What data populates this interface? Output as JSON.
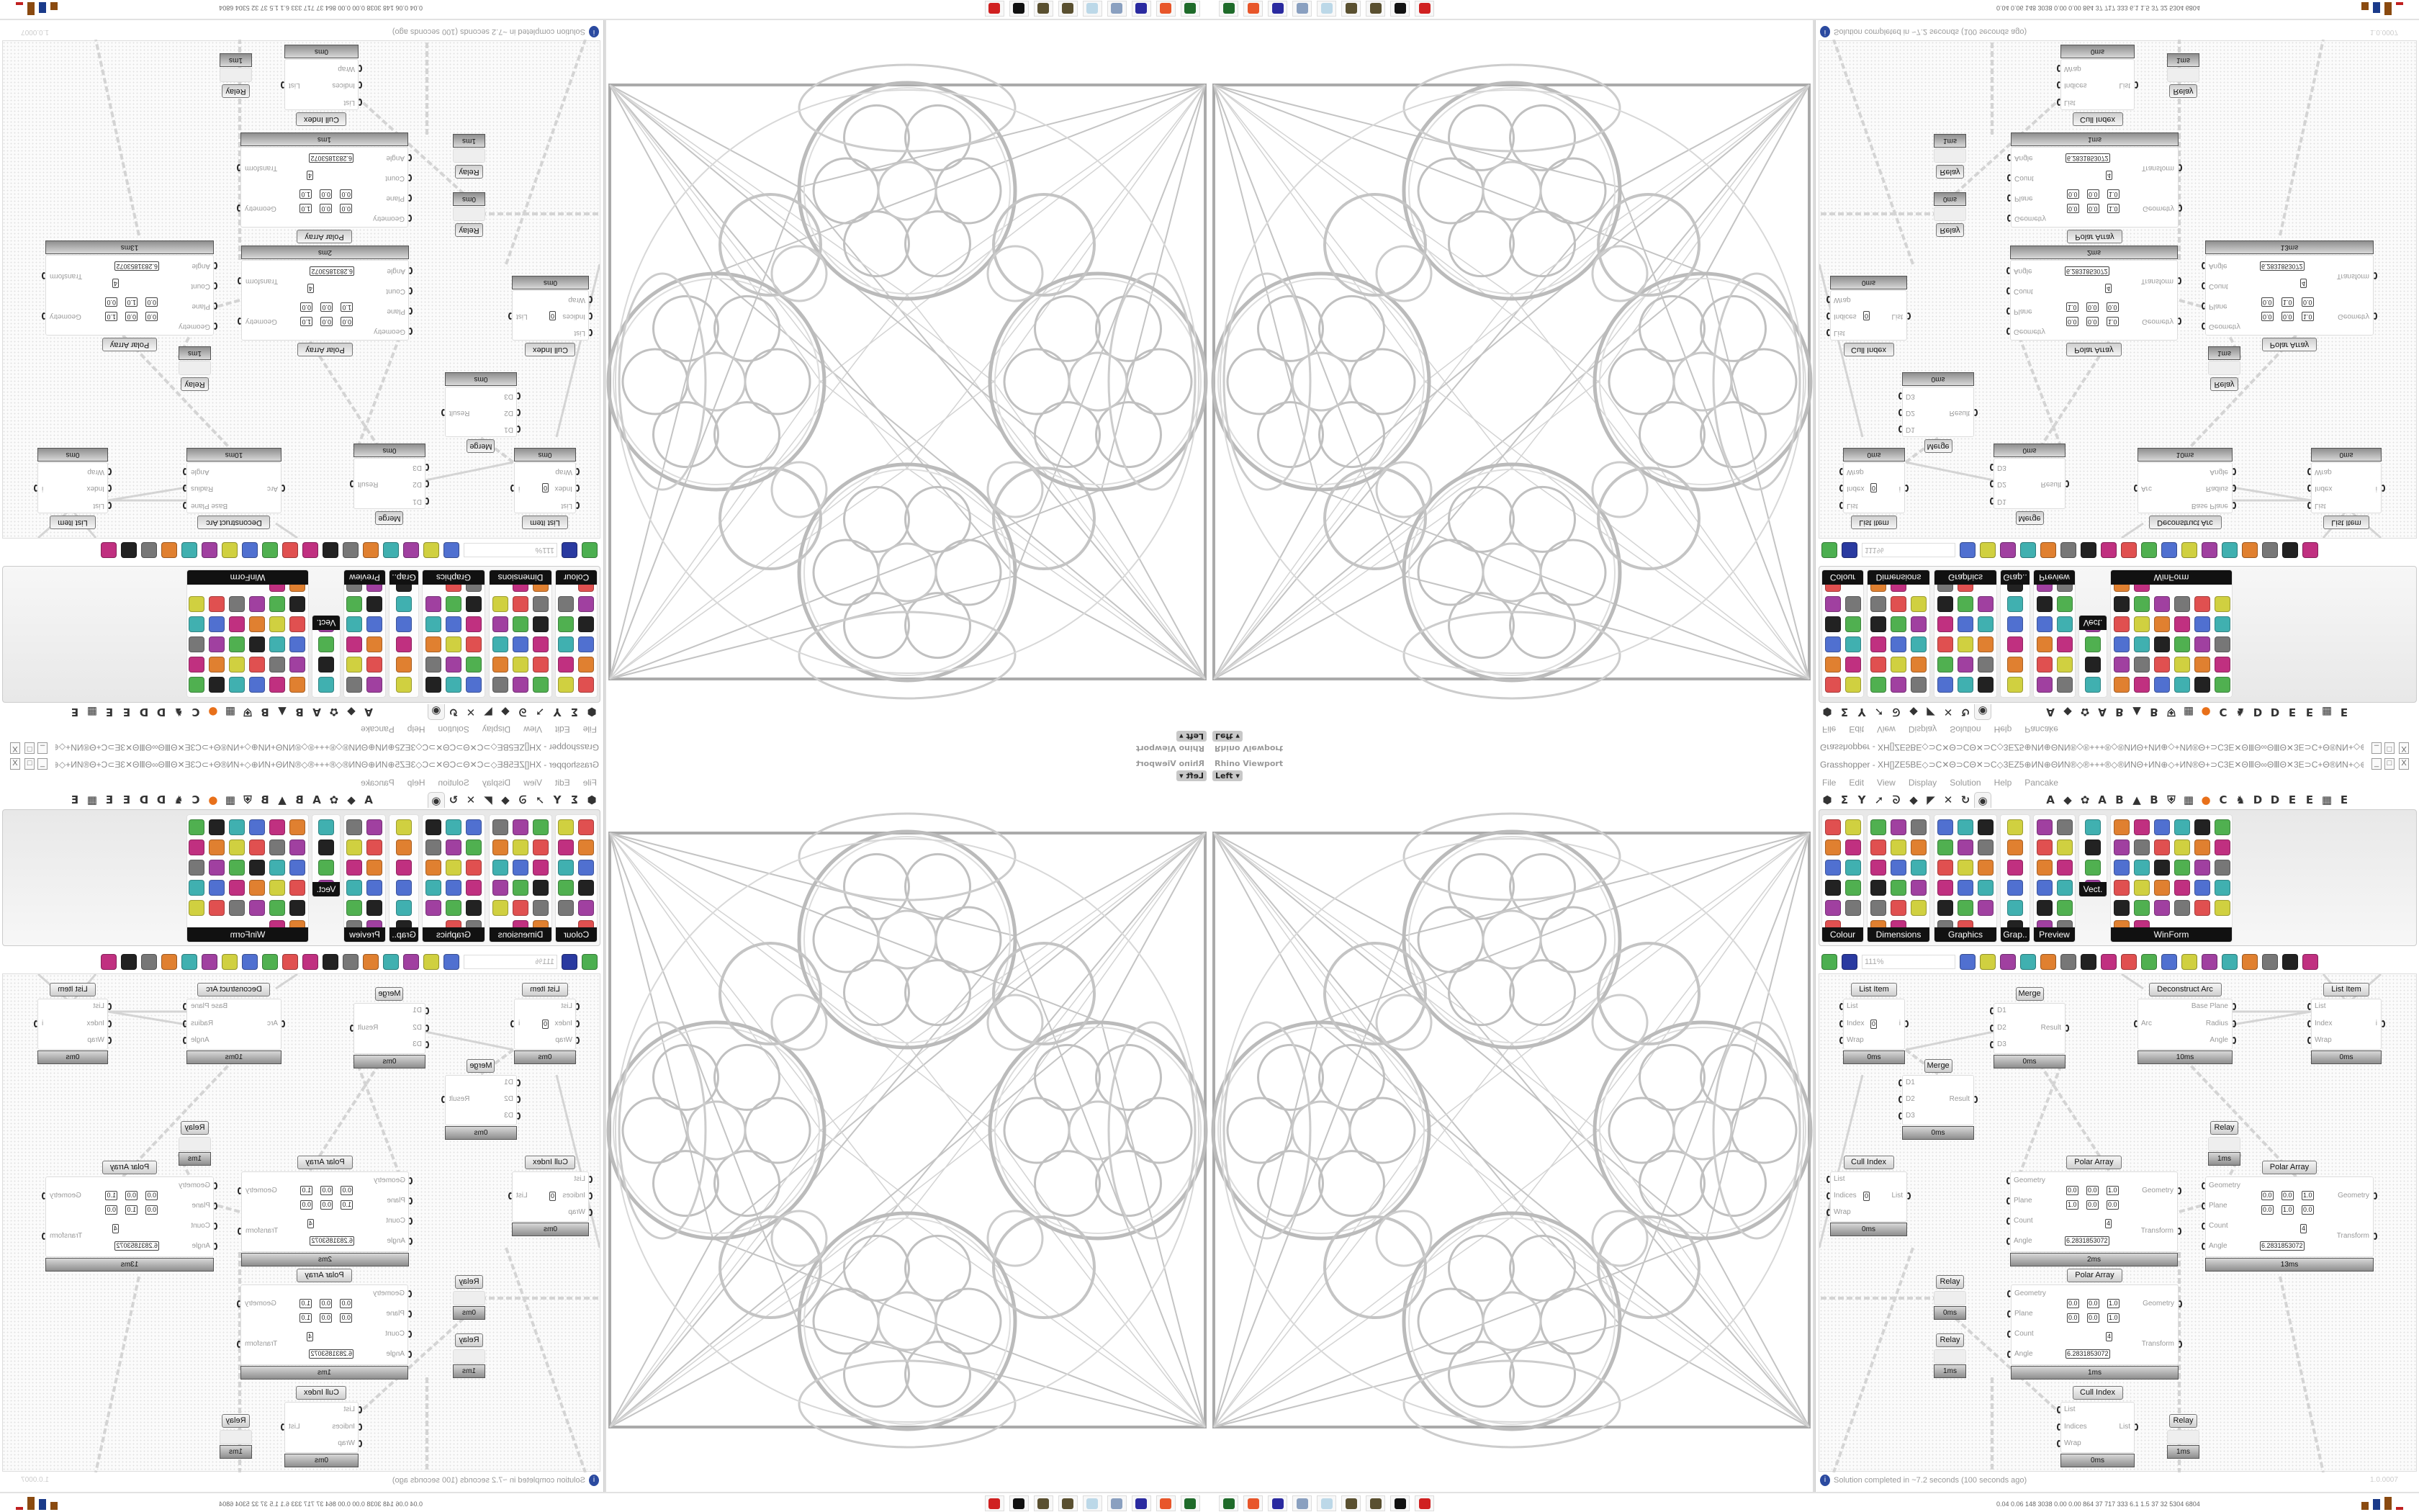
{
  "viewport": {
    "title": "Rhino Viewport",
    "view_label": "Left",
    "view_arrow": "▾"
  },
  "grasshopper": {
    "title": "Grasshopper - XH[]ZE5BE◇⊃C✕Θ⊃CΘ✕⊃C◇3EZ5⊕ИN⊕ΘИN®◇®+++®◇®ИNΘ+ИN⊕◇+ИN®Θ+⊃C3E✕ΘⅢΘ∞ΘⅢΘ✕3E⊃C+Θ®ИN+◇⊕3E✕3E⊞+Z5+⊞3E✕3E⊕◇+✕⊃C3E⊞+⊃C...",
    "window_buttons": [
      "_",
      "□",
      "X"
    ],
    "menu": [
      "File",
      "Edit",
      "View",
      "Display",
      "Solution",
      "Help",
      "Pancake"
    ],
    "tabs_left": [
      "hexagon-icon",
      "sigma-icon",
      "vector-icon",
      "arrow-icon",
      "curve-icon",
      "surface-icon",
      "mesh-icon",
      "intersect-icon",
      "transform-icon",
      "eye-icon"
    ],
    "tabs_selected": "eye-icon",
    "tabs_right": [
      "A",
      "◆",
      "✿",
      "A",
      "B",
      "▲",
      "B",
      "⛨",
      "▦",
      "●",
      "C",
      "♞",
      "D",
      "D",
      "E",
      "E",
      "▦",
      "E"
    ],
    "ribbon_groups": [
      {
        "label": "Colour",
        "icons": [
          "colour-wheel",
          "gradient",
          "shaded-cube",
          "colour-triangle",
          "cube-green",
          "hsl",
          "sphere-red",
          "hsv",
          "sphere-red-small",
          "prism",
          "colour-swatch"
        ]
      },
      {
        "label": "Dimensions",
        "icons": [
          "tag-delete",
          "dimension-vertical",
          "dimension-angle",
          "tag",
          "line-dim",
          "box-dim",
          "magenta-square",
          "dim-ticks",
          "dim-bracket",
          "grid-hatch",
          "dim-triangle",
          "dim-cross",
          "dim-arc",
          "dim-points",
          "dim-select",
          "dim-line",
          "dim-yellow-triangle"
        ]
      },
      {
        "label": "Graphics",
        "icons": [
          "circle-grey",
          "text-circle",
          "eye-circle",
          "dotted-circle",
          "text-t",
          "rounded-square",
          "blur-circle",
          "list-circle",
          "gear-circle",
          "ring",
          "link-circle",
          "floppy-mountain",
          "sphere-grey",
          "polygon-points",
          "floppy-star",
          "sphere-dark",
          "yin-yang"
        ]
      },
      {
        "label": "Grap..",
        "icons": [
          "histogram",
          "legend-gradient",
          "pie-chart",
          "line-graph",
          "stacked-pages",
          "area-graph"
        ]
      },
      {
        "label": "Preview",
        "icons": [
          "egg-gradient",
          "camera-frame",
          "sphere-image",
          "landscape",
          "blobs-blue",
          "heart-blue",
          "blobs-red",
          "heart-green",
          "diagonal-square",
          "hearts-pink",
          "sl-text",
          "tree-image"
        ]
      },
      {
        "label": "Vect.",
        "icons": [
          "sort-numbers",
          "vector-path",
          "arrows-red",
          "arrows-green"
        ]
      },
      {
        "label": "WinForm",
        "icons": [
          "letter-a",
          "list-form",
          "text-lines",
          "label-box",
          "chart-lines",
          "stack-form",
          "hatch-green",
          "slider-strip",
          "slider-knob",
          "grid-green",
          "bird-yellow",
          "panel-yellow",
          "checkbox",
          "text-panel",
          "image-form",
          "pie-form",
          "people",
          "progress",
          "dial",
          "package",
          "splitter",
          "text-a-plus",
          "ok-button",
          "spinner",
          "bar-vertical",
          "list-bullets",
          "green-panel",
          "calendar",
          "scrollbar",
          "toggle-green",
          "bar-chart",
          "play-bar"
        ]
      }
    ],
    "canvas_toolbar": {
      "zoom": "111%",
      "icons": [
        "new-file-icon",
        "save-icon",
        "zoom-extents-icon",
        "preview-eye-icon",
        "brush-icon",
        "robot-icon",
        "at-icon",
        "gha-icon",
        "panel-icon",
        "search-s-icon",
        "box-icon",
        "balloon-icon",
        "cross-wires-icon",
        "helmet-icon",
        "cylinder-icon",
        "red-shape-icon",
        "teal-shape-icon",
        "green-shape-icon",
        "orange-sphere-icon",
        "blue-sphere-icon"
      ]
    },
    "components": [
      {
        "name": "List Item",
        "inputs": [
          "List",
          "Index",
          "Wrap"
        ],
        "outputs": [
          "i"
        ],
        "value": "0",
        "footer": "0ms"
      },
      {
        "name": "Merge",
        "inputs": [
          "D1",
          "D2",
          "D3"
        ],
        "outputs": [
          "Result"
        ],
        "footer": "0ms"
      },
      {
        "name": "Deconstruct Arc",
        "inputs": [
          "Arc"
        ],
        "outputs": [
          "Base Plane",
          "Radius",
          "Angle"
        ],
        "footer": "10ms"
      },
      {
        "name": "List Item",
        "inputs": [
          "List",
          "Index",
          "Wrap"
        ],
        "outputs": [
          "i"
        ],
        "footer": "0ms"
      },
      {
        "name": "Merge",
        "inputs": [
          "D1",
          "D2",
          "D3"
        ],
        "outputs": [
          "Result"
        ],
        "footer": "0ms"
      },
      {
        "name": "Relay",
        "inputs": [],
        "outputs": [],
        "footer": "1ms"
      },
      {
        "name": "Cull Index",
        "inputs": [
          "List",
          "Indices",
          "Wrap"
        ],
        "outputs": [
          "List"
        ],
        "value": "0",
        "footer": "0ms"
      },
      {
        "name": "Polar Array",
        "inputs": [
          "Geometry",
          "Plane",
          "Count",
          "Angle"
        ],
        "outputs": [
          "Geometry",
          "Transform"
        ],
        "plane_o": [
          "0.0",
          "0.0",
          "1.0"
        ],
        "plane_z": [
          "1.0",
          "0.0",
          "0.0"
        ],
        "count": "4",
        "angle": "6.2831853072",
        "footer": "2ms"
      },
      {
        "name": "Polar Array",
        "inputs": [
          "Geometry",
          "Plane",
          "Count",
          "Angle"
        ],
        "outputs": [
          "Geometry",
          "Transform"
        ],
        "plane_o": [
          "0.0",
          "0.0",
          "1.0"
        ],
        "plane_z": [
          "0.0",
          "1.0",
          "0.0"
        ],
        "count": "4",
        "angle": "6.2831853072",
        "footer": "13ms"
      },
      {
        "name": "Polar Array",
        "inputs": [
          "Geometry",
          "Plane",
          "Count",
          "Angle"
        ],
        "outputs": [
          "Geometry",
          "Transform"
        ],
        "plane_o": [
          "0.0",
          "0.0",
          "1.0"
        ],
        "plane_z": [
          "0.0",
          "0.0",
          "1.0"
        ],
        "count": "4",
        "angle": "6.2831853072",
        "footer": "1ms"
      },
      {
        "name": "Relay",
        "inputs": [],
        "outputs": [],
        "footer": "0ms"
      },
      {
        "name": "Relay",
        "inputs": [],
        "outputs": [],
        "footer": "1ms"
      },
      {
        "name": "Cull Index",
        "inputs": [
          "List",
          "Indices",
          "Wrap"
        ],
        "outputs": [
          "List"
        ],
        "footer": "0ms"
      },
      {
        "name": "Relay",
        "inputs": [],
        "outputs": [],
        "footer": "1ms"
      }
    ],
    "status": {
      "icon": "info-icon",
      "text": "Solution completed in ~7.2 seconds (100 seconds ago)",
      "version": "1.0.0007"
    }
  },
  "taskbar": {
    "apps": [
      {
        "name": "terminal",
        "color": "#1f6b2a"
      },
      {
        "name": "firefox",
        "color": "#e8562a"
      },
      {
        "name": "floppy-64",
        "color": "#2a2aa0"
      },
      {
        "name": "scroll-editor",
        "color": "#8aa0c0"
      },
      {
        "name": "notepad",
        "color": "#bcd8e8"
      },
      {
        "name": "dice-1",
        "color": "#5a5030"
      },
      {
        "name": "dice-2",
        "color": "#5a5030"
      },
      {
        "name": "inkscape",
        "color": "#111111"
      },
      {
        "name": "red-badge",
        "color": "#d02020"
      }
    ],
    "perf_text": "0.04 0.06 148 3038 0.00 0.00 864 37 717 333 6.1 1.5 37 32 5304 6804",
    "perf_bars": [
      {
        "value": 0.6,
        "color": "#8a4a10"
      },
      {
        "value": 0.85,
        "color": "#1a3a8a"
      },
      {
        "value": 1.0,
        "color": "#8a4a10"
      },
      {
        "value": 0.25,
        "color": "#c02020"
      }
    ]
  }
}
